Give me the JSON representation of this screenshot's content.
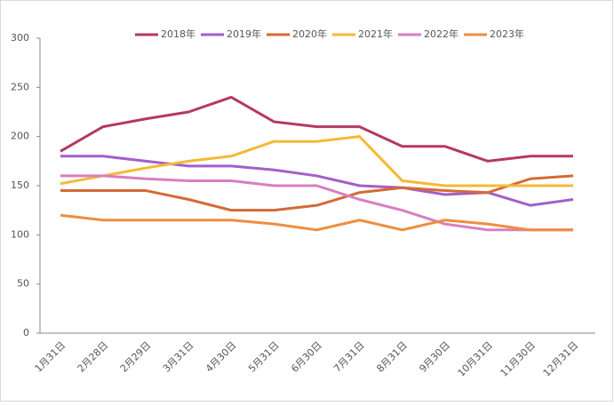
{
  "chart_data": {
    "type": "line",
    "categories": [
      "1月31日",
      "2月28日",
      "2月29日",
      "3月31日",
      "4月30日",
      "5月31日",
      "6月30日",
      "7月31日",
      "8月31日",
      "9月30日",
      "10月31日",
      "11月30日",
      "12月31日"
    ],
    "series": [
      {
        "name": "2018年",
        "color": "#b5395f",
        "values": [
          185,
          210,
          218,
          225,
          240,
          215,
          210,
          210,
          190,
          190,
          175,
          180,
          180
        ]
      },
      {
        "name": "2019年",
        "color": "#a35fc9",
        "values": [
          180,
          180,
          175,
          170,
          170,
          166,
          160,
          150,
          148,
          141,
          143,
          130,
          136
        ]
      },
      {
        "name": "2020年",
        "color": "#d46a35",
        "values": [
          145,
          145,
          145,
          136,
          125,
          125,
          130,
          143,
          148,
          145,
          143,
          157,
          160
        ]
      },
      {
        "name": "2021年",
        "color": "#f5b935",
        "values": [
          152,
          160,
          168,
          175,
          180,
          195,
          195,
          200,
          155,
          150,
          150,
          150,
          150
        ]
      },
      {
        "name": "2022年",
        "color": "#d97ec0",
        "values": [
          160,
          160,
          157,
          155,
          155,
          150,
          150,
          136,
          125,
          111,
          105,
          105,
          105
        ]
      },
      {
        "name": "2023年",
        "color": "#ee8e3f",
        "values": [
          120,
          115,
          115,
          115,
          115,
          111,
          105,
          115,
          105,
          115,
          111,
          105,
          105
        ]
      }
    ],
    "ylim": [
      0,
      300
    ],
    "yticks": [
      0,
      50,
      100,
      150,
      200,
      250,
      300
    ],
    "legend": "top"
  }
}
